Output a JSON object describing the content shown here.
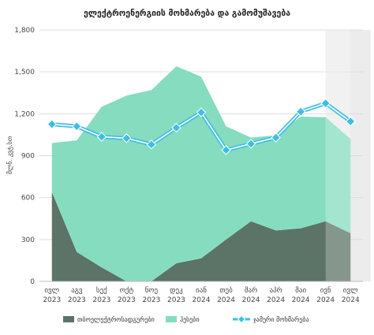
{
  "chart_data": {
    "type": "area",
    "title": "ელექტროენერგიის მოხმარება და გამომუშავება",
    "ylabel": "მლნ. კვტ.სთ",
    "xlabel": "",
    "ylim": [
      0,
      1800
    ],
    "yticks": [
      0,
      300,
      600,
      900,
      1200,
      1500,
      1800
    ],
    "ytick_labels": [
      "0",
      "300",
      "600",
      "900",
      "1,200",
      "1,500",
      "1,800"
    ],
    "grid": true,
    "legend_position": "bottom",
    "highlight_range": [
      "ივნ 2024",
      "ივლ 2024"
    ],
    "categories": [
      {
        "month": "ივლ",
        "year": "2023"
      },
      {
        "month": "აგვ",
        "year": "2023"
      },
      {
        "month": "სექ",
        "year": "2023"
      },
      {
        "month": "ოქტ",
        "year": "2023"
      },
      {
        "month": "ნოე",
        "year": "2023"
      },
      {
        "month": "დეკ",
        "year": "2023"
      },
      {
        "month": "იან",
        "year": "2024"
      },
      {
        "month": "თებ",
        "year": "2024"
      },
      {
        "month": "მარ",
        "year": "2024"
      },
      {
        "month": "აპრ",
        "year": "2024"
      },
      {
        "month": "მაი",
        "year": "2024"
      },
      {
        "month": "ივნ",
        "year": "2024"
      },
      {
        "month": "ივლ",
        "year": "2024"
      }
    ],
    "series": [
      {
        "name": "თბოელექტროსადგურები",
        "kind": "area",
        "color": "#5c7367",
        "values": [
          640,
          210,
          100,
          0,
          0,
          130,
          165,
          300,
          430,
          365,
          380,
          430,
          345
        ]
      },
      {
        "name": "ჰესები",
        "kind": "area",
        "color": "#86dcbf",
        "values": [
          350,
          800,
          1150,
          1330,
          1370,
          1410,
          1300,
          810,
          600,
          680,
          800,
          745,
          675
        ]
      },
      {
        "name": "ჯამური მოხმარება",
        "kind": "line",
        "color": "#3bbfe6",
        "values": [
          1125,
          1110,
          1035,
          1025,
          980,
          1100,
          1210,
          940,
          985,
          1030,
          1215,
          1275,
          1145
        ]
      }
    ]
  }
}
